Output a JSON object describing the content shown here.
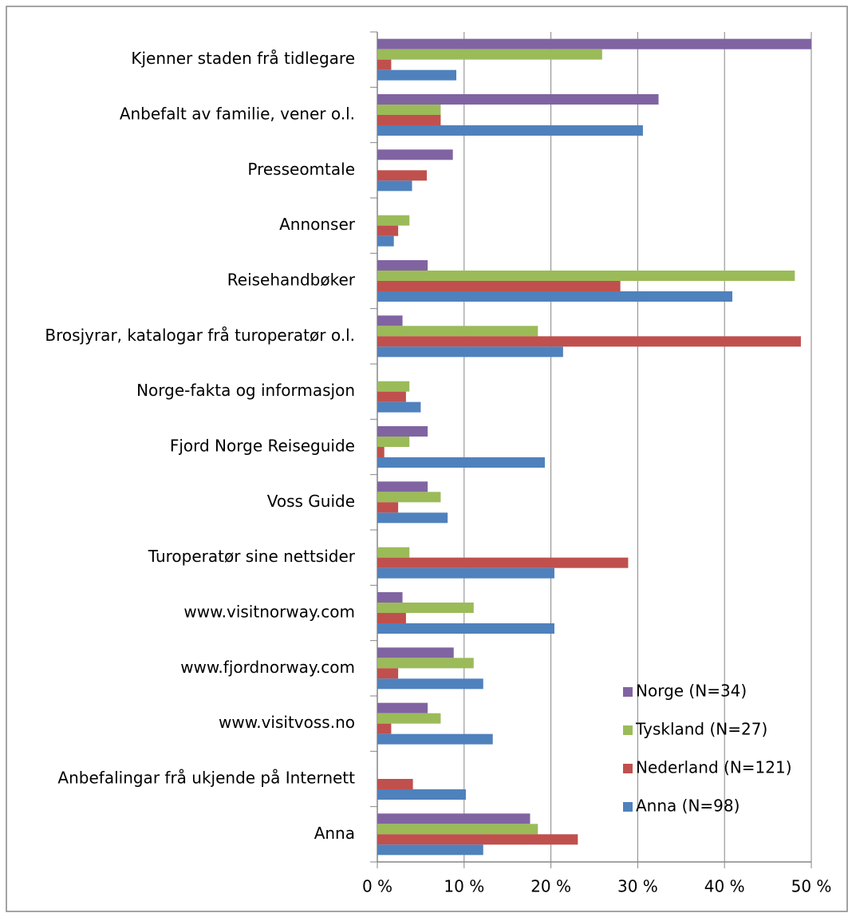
{
  "chart_data": {
    "type": "bar",
    "orientation": "horizontal",
    "categories": [
      "Kjenner staden frå tidlegare",
      "Anbefalt av familie, vener o.l.",
      "Presseomtale",
      "Annonser",
      "Reisehandbøker",
      "Brosjyrar, katalogar frå turoperatør o.l.",
      "Norge-fakta og informasjon",
      "Fjord Norge Reiseguide",
      "Voss Guide",
      "Turoperatør sine nettsider",
      "www.visitnorway.com",
      "www.fjordnorway.com",
      "www.visitvoss.no",
      "Anbefalingar frå ukjende på Internett",
      "Anna"
    ],
    "series": [
      {
        "name": "Norge (N=34)",
        "color": "#8064a2",
        "values": [
          50,
          32.4,
          8.7,
          0,
          5.8,
          2.9,
          0,
          5.8,
          5.8,
          0,
          2.9,
          8.8,
          5.8,
          0,
          17.6
        ]
      },
      {
        "name": "Tyskland (N=27)",
        "color": "#9bbb59",
        "values": [
          25.9,
          7.3,
          0,
          3.7,
          48.1,
          18.5,
          3.7,
          3.7,
          7.3,
          3.7,
          11.1,
          11.1,
          7.3,
          0,
          18.5
        ]
      },
      {
        "name": "Nederland (N=121)",
        "color": "#c0504d",
        "values": [
          1.6,
          7.3,
          5.7,
          2.4,
          28.0,
          48.8,
          3.3,
          0.8,
          2.4,
          28.9,
          3.3,
          2.4,
          1.6,
          4.1,
          23.1
        ]
      },
      {
        "name": "Anna (N=98)",
        "color": "#4f81bd",
        "values": [
          9.1,
          30.6,
          4.0,
          1.9,
          40.9,
          21.4,
          5.0,
          19.3,
          8.1,
          20.4,
          20.4,
          12.2,
          13.3,
          10.2,
          12.2
        ]
      }
    ],
    "xlim": [
      0,
      50
    ],
    "xticks": [
      {
        "value": 0,
        "label": "0 %"
      },
      {
        "value": 10,
        "label": "10 %"
      },
      {
        "value": 20,
        "label": "20 %"
      },
      {
        "value": 30,
        "label": "30 %"
      },
      {
        "value": 40,
        "label": "40 %"
      },
      {
        "value": 50,
        "label": "50 %"
      }
    ],
    "grid": true,
    "legend": "lower right"
  }
}
